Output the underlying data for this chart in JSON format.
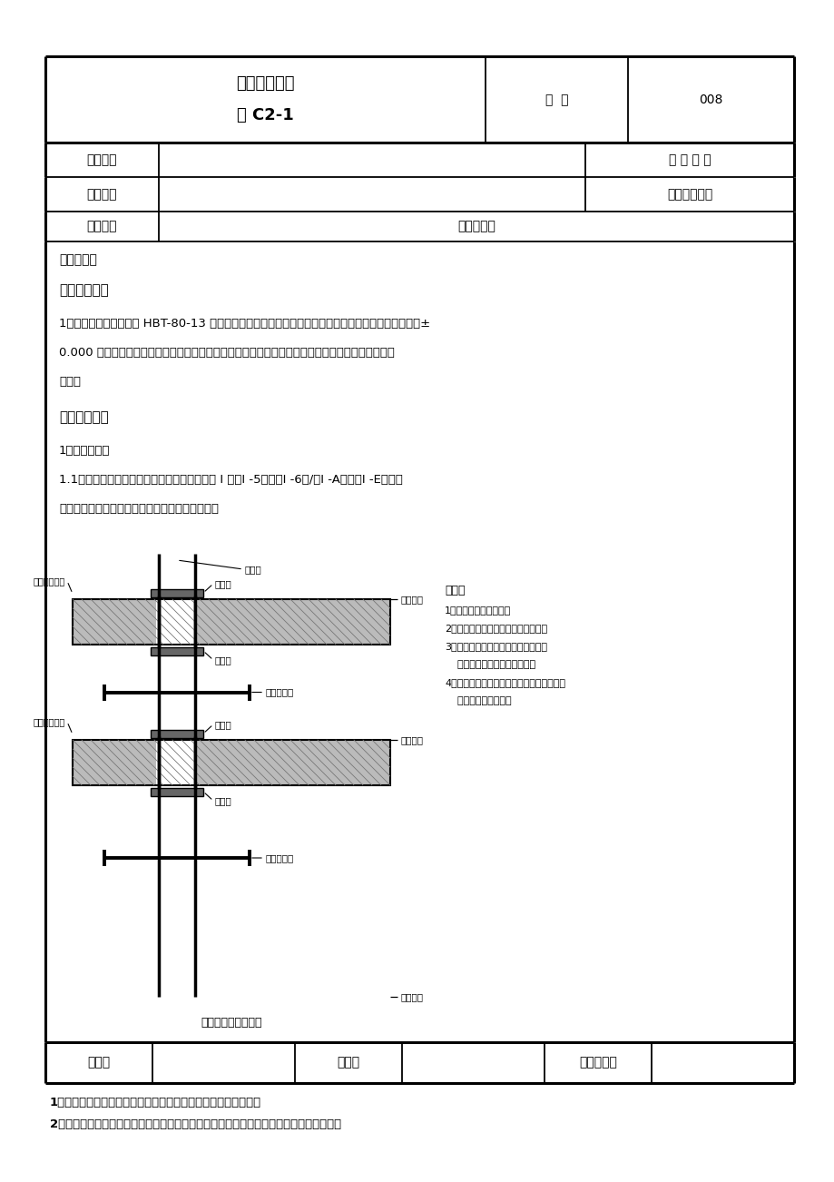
{
  "page_bg": "#ffffff",
  "title1": "技术交底记录",
  "title2": "表 C2-1",
  "biaohao_label": "编  号",
  "biaohao_value": "008",
  "row1_col1": "工程名称",
  "row1_col3": "交 底 日 期",
  "row2_col1": "施工单位",
  "row2_col3": "分项工程名称",
  "row3_col1": "交底提要",
  "row3_content": "泵送混凝土",
  "section_jiaodi": "交底内容：",
  "section3_title": "三、作业条件",
  "section3_para1": "1、地上部分砼泵送采用 HBT-80-13 型拖式泵车一台（简称地泵），地下部分为汽车泵，施工进度至出±",
  "section3_para2": "0.000 后，地泵泵车及泵管等设备须进场并检验合格，安放地泵的场地平整硬化完毕且场地灌车通行",
  "section3_para3": "便捷。",
  "section4_title": "四、操作工艺",
  "section4_sub1": "1、泵管布置：",
  "section4_sub1_1": "1.1竖向立管：本工程砼采用单立管输送，设在 I 段（I -5）～（I -6）/（I -A）～（I -E）间后",
  "section4_sub1_2": "浇带处，每层采用木楔与结构楔死，如下图所示。",
  "diagram_caption": "泵管穿越楼层大样图",
  "note_title": "说明：",
  "note1": "1、泵管加固必须牢固。",
  "note2": "2、必须经常检查泵管加固是否牢固。",
  "note3": "3、泵管穿过楼板处必须垫上橡胶垫，",
  "note3b": "    并且在四个方向加木楔楔紧。",
  "note4": "4、首层弯管与竖向管交界处加钢管架支撑，",
  "note4b": "    避免弯管直接受力。",
  "bottom_col1": "审核人",
  "bottom_col2": "交底人",
  "bottom_col3": "接受交底人",
  "footer1": "1、本表由施工单位填写，交底单位与接受交底单位各保存一份。",
  "footer2": "2、当做分项工程施工技术交底时，应填写「分项工程名称」栏，其他技术交底可不填写。"
}
